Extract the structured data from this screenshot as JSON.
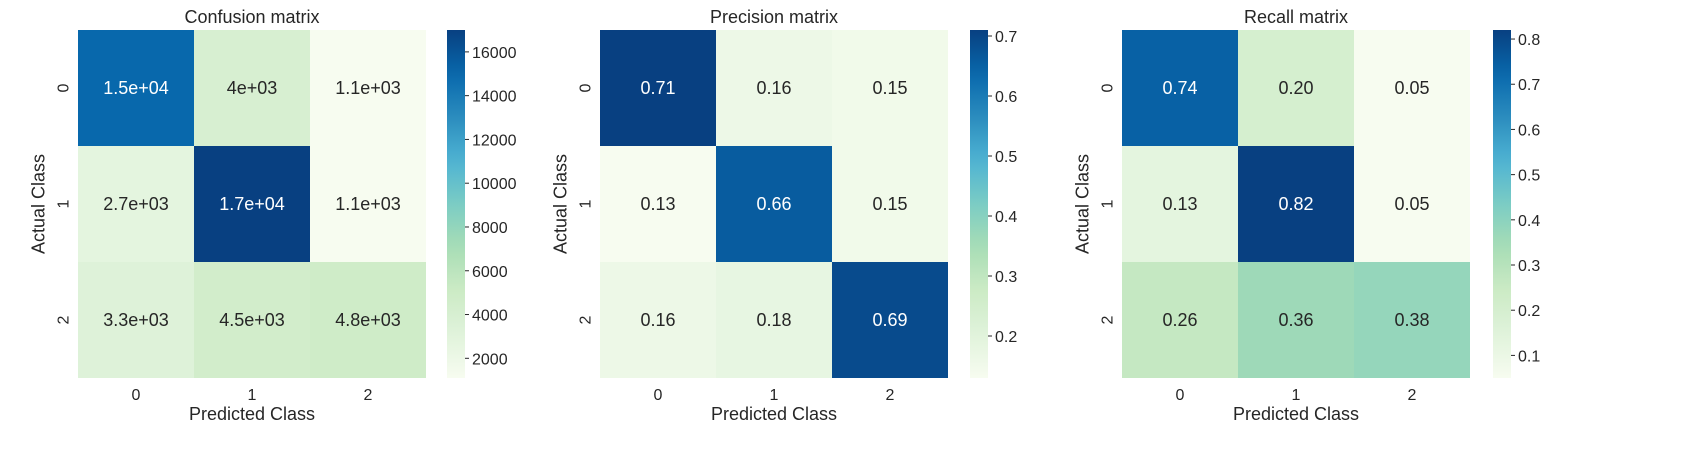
{
  "chart_data": [
    {
      "type": "heatmap",
      "title": "Confusion matrix",
      "xlabel": "Predicted Class",
      "ylabel": "Actual Class",
      "x_categories": [
        "0",
        "1",
        "2"
      ],
      "y_categories": [
        "0",
        "1",
        "2"
      ],
      "values": [
        [
          15000,
          4000,
          1100
        ],
        [
          2700,
          17000,
          1100
        ],
        [
          3300,
          4500,
          4800
        ]
      ],
      "annotations": [
        [
          "1.5e+04",
          "4e+03",
          "1.1e+03"
        ],
        [
          "2.7e+03",
          "1.7e+04",
          "1.1e+03"
        ],
        [
          "3.3e+03",
          "4.5e+03",
          "4.8e+03"
        ]
      ],
      "colorbar": {
        "min": 1100,
        "max": 17000,
        "ticks": [
          2000,
          4000,
          6000,
          8000,
          10000,
          12000,
          14000,
          16000
        ],
        "tick_labels": [
          "2000",
          "4000",
          "6000",
          "8000",
          "10000",
          "12000",
          "14000",
          "16000"
        ]
      },
      "colormap": "GnBu"
    },
    {
      "type": "heatmap",
      "title": "Precision matrix",
      "xlabel": "Predicted Class",
      "ylabel": "Actual Class",
      "x_categories": [
        "0",
        "1",
        "2"
      ],
      "y_categories": [
        "0",
        "1",
        "2"
      ],
      "values": [
        [
          0.71,
          0.16,
          0.15
        ],
        [
          0.13,
          0.66,
          0.15
        ],
        [
          0.16,
          0.18,
          0.69
        ]
      ],
      "annotations": [
        [
          "0.71",
          "0.16",
          "0.15"
        ],
        [
          "0.13",
          "0.66",
          "0.15"
        ],
        [
          "0.16",
          "0.18",
          "0.69"
        ]
      ],
      "colorbar": {
        "min": 0.13,
        "max": 0.71,
        "ticks": [
          0.2,
          0.3,
          0.4,
          0.5,
          0.6,
          0.7
        ],
        "tick_labels": [
          "0.2",
          "0.3",
          "0.4",
          "0.5",
          "0.6",
          "0.7"
        ]
      },
      "colormap": "GnBu"
    },
    {
      "type": "heatmap",
      "title": "Recall matrix",
      "xlabel": "Predicted Class",
      "ylabel": "Actual Class",
      "x_categories": [
        "0",
        "1",
        "2"
      ],
      "y_categories": [
        "0",
        "1",
        "2"
      ],
      "values": [
        [
          0.74,
          0.2,
          0.05
        ],
        [
          0.13,
          0.82,
          0.05
        ],
        [
          0.26,
          0.36,
          0.38
        ]
      ],
      "annotations": [
        [
          "0.74",
          "0.20",
          "0.05"
        ],
        [
          "0.13",
          "0.82",
          "0.05"
        ],
        [
          "0.26",
          "0.36",
          "0.38"
        ]
      ],
      "colorbar": {
        "min": 0.05,
        "max": 0.82,
        "ticks": [
          0.1,
          0.2,
          0.3,
          0.4,
          0.5,
          0.6,
          0.7,
          0.8
        ],
        "tick_labels": [
          "0.1",
          "0.2",
          "0.3",
          "0.4",
          "0.5",
          "0.6",
          "0.7",
          "0.8"
        ]
      },
      "colormap": "GnBu"
    }
  ]
}
